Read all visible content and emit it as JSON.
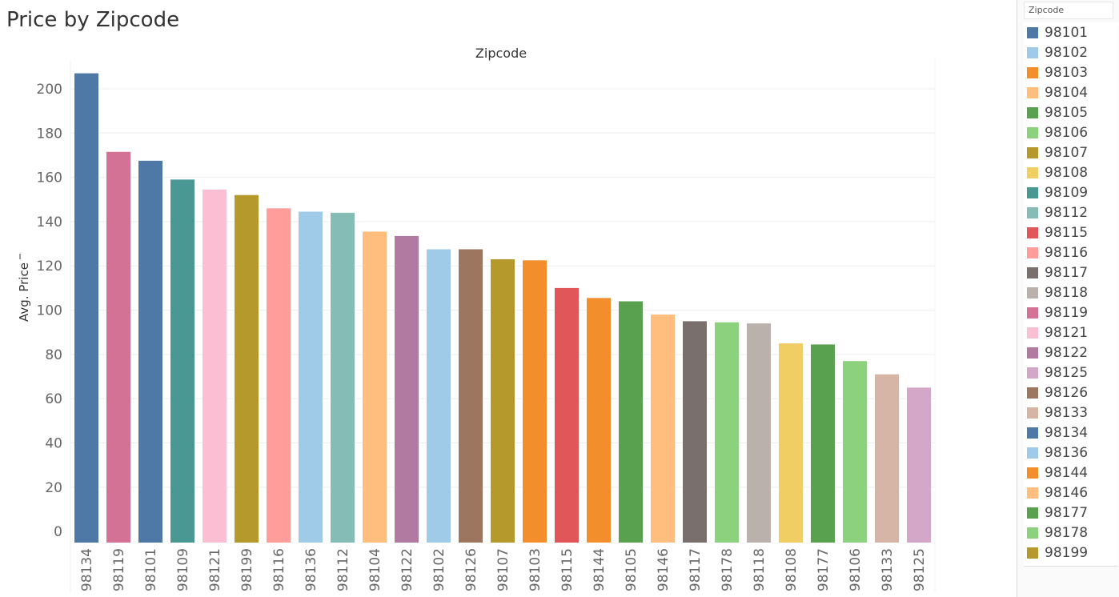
{
  "page": {
    "title": "Price by Zipcode"
  },
  "legend": {
    "title": "Zipcode",
    "items": [
      {
        "label": "98101",
        "color": "#4e79a7"
      },
      {
        "label": "98102",
        "color": "#a0cbe8"
      },
      {
        "label": "98103",
        "color": "#f28e2b"
      },
      {
        "label": "98104",
        "color": "#ffbe7d"
      },
      {
        "label": "98105",
        "color": "#59a14f"
      },
      {
        "label": "98106",
        "color": "#8cd17d"
      },
      {
        "label": "98107",
        "color": "#b6992d"
      },
      {
        "label": "98108",
        "color": "#f1ce63"
      },
      {
        "label": "98109",
        "color": "#499894"
      },
      {
        "label": "98112",
        "color": "#86bcb6"
      },
      {
        "label": "98115",
        "color": "#e15759"
      },
      {
        "label": "98116",
        "color": "#ff9d9a"
      },
      {
        "label": "98117",
        "color": "#79706e"
      },
      {
        "label": "98118",
        "color": "#bab0ac"
      },
      {
        "label": "98119",
        "color": "#d37295"
      },
      {
        "label": "98121",
        "color": "#fabfd2"
      },
      {
        "label": "98122",
        "color": "#b07aa1"
      },
      {
        "label": "98125",
        "color": "#d4a6c8"
      },
      {
        "label": "98126",
        "color": "#9d7660"
      },
      {
        "label": "98133",
        "color": "#d7b5a6"
      },
      {
        "label": "98134",
        "color": "#4e79a7"
      },
      {
        "label": "98136",
        "color": "#a0cbe8"
      },
      {
        "label": "98144",
        "color": "#f28e2b"
      },
      {
        "label": "98146",
        "color": "#ffbe7d"
      },
      {
        "label": "98177",
        "color": "#59a14f"
      },
      {
        "label": "98178",
        "color": "#8cd17d"
      },
      {
        "label": "98199",
        "color": "#b6992d"
      }
    ]
  },
  "chart_data": {
    "type": "bar",
    "title": "Zipcode",
    "xlabel": "",
    "ylabel": "Avg. Price",
    "ylim": [
      -5,
      213
    ],
    "yticks": [
      0,
      20,
      40,
      60,
      80,
      100,
      120,
      140,
      160,
      180,
      200
    ],
    "grid": true,
    "legend_position": "right",
    "categories": [
      "98134",
      "98119",
      "98101",
      "98109",
      "98121",
      "98199",
      "98116",
      "98136",
      "98112",
      "98104",
      "98122",
      "98102",
      "98126",
      "98107",
      "98103",
      "98115",
      "98144",
      "98105",
      "98146",
      "98117",
      "98178",
      "98118",
      "98108",
      "98177",
      "98106",
      "98133",
      "98125"
    ],
    "values": [
      207,
      171.5,
      167.5,
      159,
      154.5,
      152,
      146,
      144.5,
      144,
      135.5,
      133.5,
      127.5,
      127.5,
      123,
      122.5,
      110,
      105.5,
      104,
      98,
      95,
      94.5,
      94,
      85,
      84.5,
      77,
      71,
      65
    ],
    "colors": [
      "#4e79a7",
      "#d37295",
      "#4e79a7",
      "#499894",
      "#fabfd2",
      "#b6992d",
      "#ff9d9a",
      "#a0cbe8",
      "#86bcb6",
      "#ffbe7d",
      "#b07aa1",
      "#a0cbe8",
      "#9d7660",
      "#b6992d",
      "#f28e2b",
      "#e15759",
      "#f28e2b",
      "#59a14f",
      "#ffbe7d",
      "#79706e",
      "#8cd17d",
      "#bab0ac",
      "#f1ce63",
      "#59a14f",
      "#8cd17d",
      "#d7b5a6",
      "#d4a6c8"
    ]
  }
}
